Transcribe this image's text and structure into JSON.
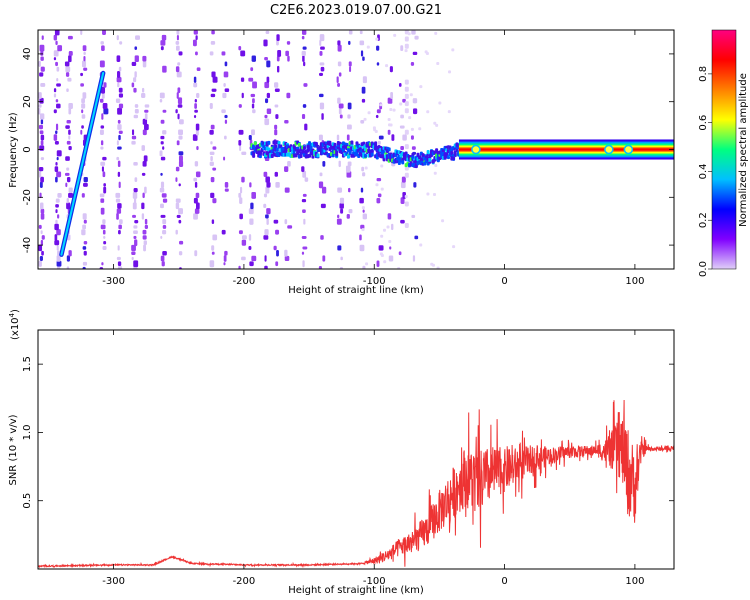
{
  "title": "C2E6.2023.019.07.00.G21",
  "chart_data": [
    {
      "type": "heatmap",
      "xlabel": "Height of straight line (km)",
      "ylabel": "Frequency (Hz)",
      "xlim": [
        -358,
        130
      ],
      "ylim": [
        -50,
        50
      ],
      "xticks": [
        -300,
        -200,
        -100,
        0,
        100
      ],
      "yticks": [
        -40,
        -20,
        0,
        20,
        40
      ],
      "colorbar": {
        "label": "Normalized spectral amplitude",
        "range": [
          0,
          1
        ],
        "ticks": [
          "0.0",
          "0.2",
          "0.4",
          "0.6",
          "0.8"
        ],
        "colors": [
          "#e0d0f8",
          "#8000ff",
          "#0000ff",
          "#00c0ff",
          "#00ff80",
          "#ffff00",
          "#ff8000",
          "#ff0000",
          "#ff0080"
        ]
      },
      "features": {
        "carrier_line": {
          "x_from": -35,
          "x_to": 130,
          "frequency": 0
        },
        "diagonal_streak": {
          "x": [
            -340,
            -308
          ],
          "y": [
            -44,
            32
          ]
        },
        "noise_extent_x": [
          -358,
          -70
        ],
        "noise_sparse_column": -75
      }
    },
    {
      "type": "line",
      "xlabel": "Height of straight line (km)",
      "ylabel": "SNR (10 * v/v)",
      "yscale_label": "(x10",
      "yscale_exponent": "4",
      "xlim": [
        -358,
        130
      ],
      "ylim": [
        0,
        1.75
      ],
      "xticks": [
        -300,
        -200,
        -100,
        0,
        100
      ],
      "yticks": [
        "0.5",
        "1.0",
        "1.5"
      ],
      "series": [
        {
          "color": "#ee3333",
          "envelope": {
            "x": [
              -358,
              -300,
              -270,
              -255,
              -240,
              -200,
              -150,
              -110,
              -100,
              -90,
              -80,
              -70,
              -60,
              -50,
              -40,
              -30,
              -20,
              -10,
              0,
              10,
              20,
              30,
              40,
              50,
              60,
              70,
              80,
              85,
              90,
              95,
              100,
              105,
              110,
              130
            ],
            "y": [
              0.02,
              0.03,
              0.03,
              0.09,
              0.04,
              0.03,
              0.03,
              0.04,
              0.06,
              0.1,
              0.16,
              0.2,
              0.28,
              0.42,
              0.55,
              0.68,
              0.62,
              0.7,
              0.72,
              0.76,
              0.8,
              0.82,
              0.84,
              0.86,
              0.86,
              0.87,
              0.86,
              0.88,
              0.88,
              0.7,
              0.6,
              0.87,
              0.88,
              0.88
            ]
          },
          "noise": {
            "x": [
              -358,
              -110,
              -90,
              -70,
              -50,
              -30,
              -20,
              0,
              40,
              70,
              80,
              90,
              95,
              100,
              105,
              110,
              130
            ],
            "amp": [
              0.01,
              0.01,
              0.1,
              0.2,
              0.35,
              0.5,
              0.55,
              0.35,
              0.12,
              0.08,
              0.25,
              0.55,
              0.75,
              0.6,
              0.15,
              0.04,
              0.03
            ]
          }
        }
      ]
    }
  ]
}
